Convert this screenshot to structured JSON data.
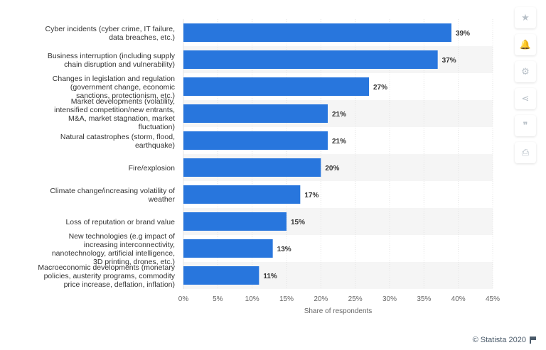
{
  "chart_data": {
    "type": "bar",
    "orientation": "horizontal",
    "categories": [
      [
        "Cyber incidents (cyber crime, IT failure,",
        "data breaches, etc.)"
      ],
      [
        "Business interruption (including supply",
        "chain disruption and vulnerability)"
      ],
      [
        "Changes in legislation and regulation",
        "(government change, economic",
        "sanctions, protectionism, etc.)"
      ],
      [
        "Market developments (volatility,",
        "intensified competition/new entrants,",
        "M&A, market stagnation, market",
        "fluctuation)"
      ],
      [
        "Natural catastrophes (storm, flood,",
        "earthquake)"
      ],
      [
        "Fire/explosion"
      ],
      [
        "Climate change/increasing volatility of",
        "weather"
      ],
      [
        "Loss of reputation or brand value"
      ],
      [
        "New technologies (e.g impact of",
        "increasing interconnectivity,",
        "nanotechnology, artificial intelligence,",
        "3D printing, drones, etc.)"
      ],
      [
        "Macroeconomic developments (monetary",
        "policies, austerity programs, commodity",
        "price increase, deflation, inflation)"
      ]
    ],
    "values": [
      39,
      37,
      27,
      21,
      21,
      20,
      17,
      15,
      13,
      11
    ],
    "value_labels": [
      "39%",
      "37%",
      "27%",
      "21%",
      "21%",
      "20%",
      "17%",
      "15%",
      "13%",
      "11%"
    ],
    "xticks": [
      "0%",
      "5%",
      "10%",
      "15%",
      "20%",
      "25%",
      "30%",
      "35%",
      "40%",
      "45%"
    ],
    "xlim": [
      0,
      45
    ],
    "xlabel": "Share of respondents",
    "grid": true,
    "bar_color": "#2876dd",
    "band_color": "#f5f5f5"
  },
  "toolbar": [
    {
      "icon": "star-icon",
      "glyph": "★"
    },
    {
      "icon": "bell-icon",
      "glyph": "🔔"
    },
    {
      "icon": "gear-icon",
      "glyph": "⚙"
    },
    {
      "icon": "share-icon",
      "glyph": "⋖"
    },
    {
      "icon": "quote-icon",
      "glyph": "❞"
    },
    {
      "icon": "print-icon",
      "glyph": "⎙"
    }
  ],
  "credit": "© Statista 2020"
}
